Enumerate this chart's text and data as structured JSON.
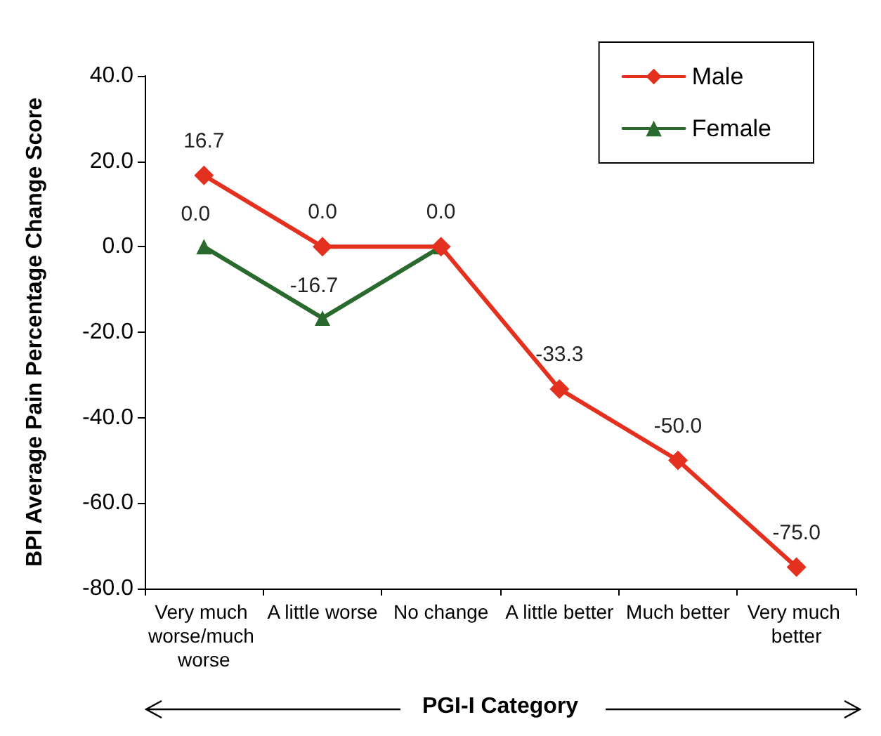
{
  "chart_data": {
    "type": "line",
    "xlabel": "PGI-I Category",
    "ylabel": "BPI Average Pain Percentage Change Score",
    "categories": [
      "Very much worse/much worse",
      "A little worse",
      "No change",
      "A little better",
      "Much better",
      "Very much better"
    ],
    "series": [
      {
        "name": "Male",
        "color": "#e3301f",
        "marker": "diamond",
        "values": [
          16.7,
          0,
          0,
          -33.3,
          -50,
          -75
        ],
        "value_labels": [
          "16.7",
          "0.0",
          "0.0",
          "-33.3",
          "-50.0",
          "-75.0"
        ]
      },
      {
        "name": "Female",
        "color": "#2b6a2e",
        "marker": "triangle",
        "values": [
          0,
          -16.7,
          0,
          null,
          null,
          null
        ],
        "value_labels": [
          "0.0",
          "-16.7",
          null,
          null,
          null,
          null
        ]
      }
    ],
    "ylim": [
      -80,
      40
    ],
    "yticks": [
      {
        "value": -80,
        "label": "-80.0"
      },
      {
        "value": -60,
        "label": "-60.0"
      },
      {
        "value": -40,
        "label": "-40.0"
      },
      {
        "value": -20,
        "label": "-20.0"
      },
      {
        "value": 0,
        "label": "0.0"
      },
      {
        "value": 20,
        "label": "20.0"
      },
      {
        "value": 40,
        "label": "40.0"
      }
    ],
    "grid": false,
    "legend": "top right",
    "line_style": "solid"
  }
}
